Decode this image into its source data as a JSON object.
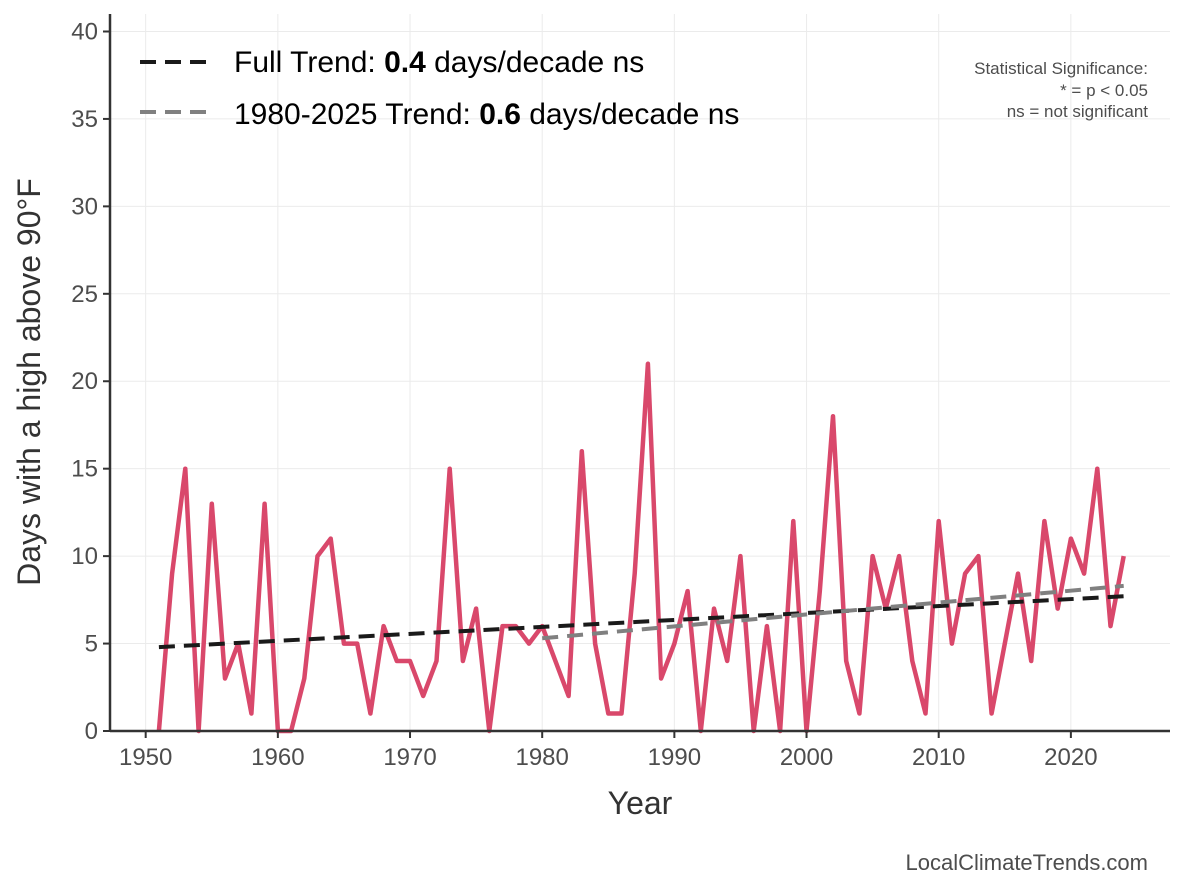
{
  "chart_data": {
    "type": "line",
    "xlabel": "Year",
    "ylabel": "Days with a high above 90°F",
    "xlim": [
      1947.3,
      2027.5
    ],
    "ylim": [
      0,
      41
    ],
    "x_ticks": [
      1950,
      1960,
      1970,
      1980,
      1990,
      2000,
      2010,
      2020
    ],
    "y_ticks": [
      0,
      5,
      10,
      15,
      20,
      25,
      30,
      35,
      40
    ],
    "grid": true,
    "legend_position": "top-left",
    "series": [
      {
        "color": "#d9486b",
        "x": [
          1951,
          1952,
          1953,
          1954,
          1955,
          1956,
          1957,
          1958,
          1959,
          1960,
          1961,
          1962,
          1963,
          1964,
          1965,
          1966,
          1967,
          1968,
          1969,
          1970,
          1971,
          1972,
          1973,
          1974,
          1975,
          1976,
          1977,
          1978,
          1979,
          1980,
          1981,
          1982,
          1983,
          1984,
          1985,
          1986,
          1987,
          1988,
          1989,
          1990,
          1991,
          1992,
          1993,
          1994,
          1995,
          1996,
          1997,
          1998,
          1999,
          2000,
          2001,
          2002,
          2003,
          2004,
          2005,
          2006,
          2007,
          2008,
          2009,
          2010,
          2011,
          2012,
          2013,
          2014,
          2015,
          2016,
          2017,
          2018,
          2019,
          2020,
          2021,
          2022,
          2023,
          2024
        ],
        "y": [
          0,
          9,
          15,
          0,
          13,
          3,
          5,
          1,
          13,
          0,
          0,
          3,
          10,
          11,
          5,
          5,
          1,
          6,
          4,
          4,
          2,
          4,
          15,
          4,
          7,
          0,
          6,
          6,
          5,
          6,
          4,
          2,
          16,
          5,
          1,
          1,
          9,
          21,
          3,
          5,
          8,
          0,
          7,
          4,
          10,
          0,
          6,
          0,
          12,
          0,
          8,
          18,
          4,
          1,
          10,
          7,
          10,
          4,
          1,
          12,
          5,
          9,
          10,
          1,
          5,
          9,
          4,
          12,
          7,
          11,
          9,
          15,
          6,
          10
        ]
      },
      {
        "name": "Full Trend",
        "color": "#1a1a1a",
        "dashed": true,
        "x": [
          1951,
          2024
        ],
        "y": [
          4.8,
          7.7
        ]
      },
      {
        "name": "1980-2025 Trend",
        "color": "#808080",
        "dashed": true,
        "x": [
          1980,
          2024
        ],
        "y": [
          5.3,
          8.3
        ]
      }
    ],
    "legend": [
      {
        "prefix": "Full Trend: ",
        "value": "0.4",
        "suffix": " days/decade ns",
        "color": "#1a1a1a"
      },
      {
        "prefix": "1980-2025 Trend: ",
        "value": "0.6",
        "suffix": " days/decade ns",
        "color": "#808080"
      }
    ],
    "annotation": {
      "lines": [
        "Statistical Significance:",
        "* = p < 0.05",
        "ns = not significant"
      ]
    },
    "credit": "LocalClimateTrends.com"
  }
}
